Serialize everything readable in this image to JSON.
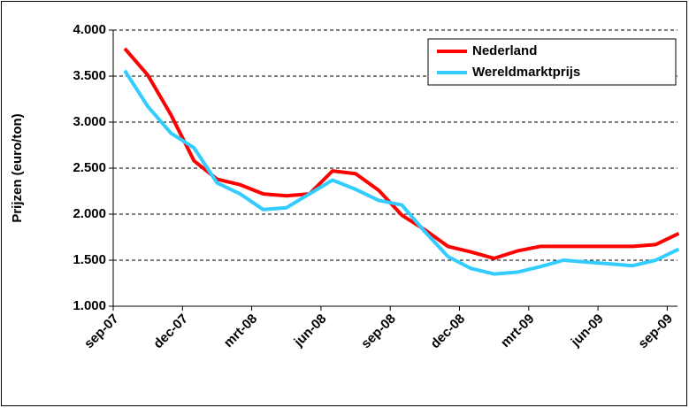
{
  "chart_data": {
    "type": "line",
    "y_label": "Prijzen (euro/ton)",
    "categories": [
      "sep-07",
      null,
      null,
      "dec-07",
      null,
      null,
      "mrt-08",
      null,
      null,
      "jun-08",
      null,
      null,
      "sep-08",
      null,
      null,
      "dec-08",
      null,
      null,
      "mrt-09",
      null,
      null,
      "jun-09",
      null,
      null,
      "sep-09"
    ],
    "series": [
      {
        "name": "Nederland",
        "color": "#ff0000",
        "values": [
          3800,
          3510,
          3080,
          2580,
          2380,
          2320,
          2220,
          2200,
          2220,
          2470,
          2440,
          2260,
          1990,
          1830,
          1650,
          1590,
          1520,
          1600,
          1650,
          1650,
          1650,
          1650,
          1650,
          1670,
          1790
        ]
      },
      {
        "name": "Wereldmarktprijs",
        "color": "#33ccff",
        "values": [
          3560,
          3170,
          2880,
          2720,
          2340,
          2220,
          2050,
          2070,
          2220,
          2370,
          2270,
          2150,
          2100,
          1810,
          1540,
          1410,
          1350,
          1370,
          1430,
          1500,
          1480,
          1460,
          1440,
          1500,
          1620
        ]
      }
    ],
    "ylim": [
      1000,
      4000
    ],
    "yticks": [
      {
        "value": 1000,
        "label": "1.000"
      },
      {
        "value": 1500,
        "label": "1.500"
      },
      {
        "value": 2000,
        "label": "2.000"
      },
      {
        "value": 2500,
        "label": "2.500"
      },
      {
        "value": 3000,
        "label": "3.000"
      },
      {
        "value": 3500,
        "label": "3.500"
      },
      {
        "value": 4000,
        "label": "4.000"
      }
    ],
    "grid": true,
    "legend": "top-right"
  }
}
